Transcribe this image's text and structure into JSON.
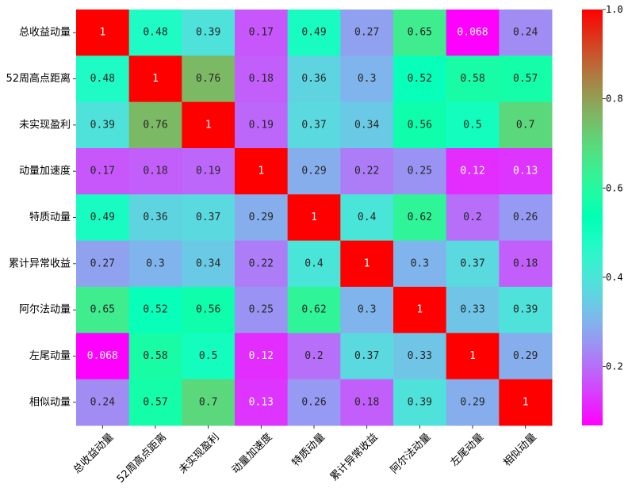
{
  "chart_data": {
    "type": "heatmap",
    "title": "",
    "xlabel": "",
    "ylabel": "",
    "rows": [
      "总收益动量",
      "52周高点距离",
      "未实现盈利",
      "动量加速度",
      "特质动量",
      "累计异常收益",
      "阿尔法动量",
      "左尾动量",
      "相似动量"
    ],
    "columns": [
      "总收益动量",
      "52周高点距离",
      "未实现盈利",
      "动量加速度",
      "特质动量",
      "累计异常收益",
      "阿尔法动量",
      "左尾动量",
      "相似动量"
    ],
    "values": [
      [
        1,
        0.48,
        0.39,
        0.17,
        0.49,
        0.27,
        0.65,
        0.068,
        0.24
      ],
      [
        0.48,
        1,
        0.76,
        0.18,
        0.36,
        0.3,
        0.52,
        0.58,
        0.57
      ],
      [
        0.39,
        0.76,
        1,
        0.19,
        0.37,
        0.34,
        0.56,
        0.5,
        0.7
      ],
      [
        0.17,
        0.18,
        0.19,
        1,
        0.29,
        0.22,
        0.25,
        0.12,
        0.13
      ],
      [
        0.49,
        0.36,
        0.37,
        0.29,
        1,
        0.4,
        0.62,
        0.2,
        0.26
      ],
      [
        0.27,
        0.3,
        0.34,
        0.22,
        0.4,
        1,
        0.3,
        0.37,
        0.18
      ],
      [
        0.65,
        0.52,
        0.56,
        0.25,
        0.62,
        0.3,
        1,
        0.33,
        0.39
      ],
      [
        0.068,
        0.58,
        0.5,
        0.12,
        0.2,
        0.37,
        0.33,
        1,
        0.29
      ],
      [
        0.24,
        0.57,
        0.7,
        0.13,
        0.26,
        0.18,
        0.39,
        0.29,
        1
      ]
    ],
    "value_labels": [
      [
        "1",
        "0.48",
        "0.39",
        "0.17",
        "0.49",
        "0.27",
        "0.65",
        "0.068",
        "0.24"
      ],
      [
        "0.48",
        "1",
        "0.76",
        "0.18",
        "0.36",
        "0.3",
        "0.52",
        "0.58",
        "0.57"
      ],
      [
        "0.39",
        "0.76",
        "1",
        "0.19",
        "0.37",
        "0.34",
        "0.56",
        "0.5",
        "0.7"
      ],
      [
        "0.17",
        "0.18",
        "0.19",
        "1",
        "0.29",
        "0.22",
        "0.25",
        "0.12",
        "0.13"
      ],
      [
        "0.49",
        "0.36",
        "0.37",
        "0.29",
        "1",
        "0.4",
        "0.62",
        "0.2",
        "0.26"
      ],
      [
        "0.27",
        "0.3",
        "0.34",
        "0.22",
        "0.4",
        "1",
        "0.3",
        "0.37",
        "0.18"
      ],
      [
        "0.65",
        "0.52",
        "0.56",
        "0.25",
        "0.62",
        "0.3",
        "1",
        "0.33",
        "0.39"
      ],
      [
        "0.068",
        "0.58",
        "0.5",
        "0.12",
        "0.2",
        "0.37",
        "0.33",
        "1",
        "0.29"
      ],
      [
        "0.24",
        "0.57",
        "0.7",
        "0.13",
        "0.26",
        "0.18",
        "0.39",
        "0.29",
        "1"
      ]
    ],
    "colormap": "rainbow",
    "vmin": 0.068,
    "vmax": 1.0,
    "colorbar": {
      "ticks": [
        0.2,
        0.4,
        0.6,
        0.8,
        1.0
      ],
      "tick_labels": [
        "0.2",
        "0.4",
        "0.6",
        "0.8",
        "1.0"
      ],
      "placement": "right"
    },
    "grid": false
  }
}
